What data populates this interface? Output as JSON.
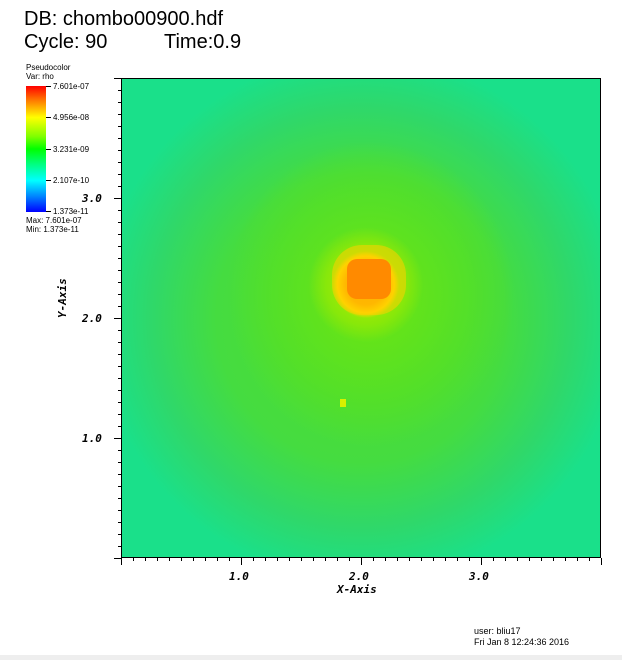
{
  "header": {
    "db": "DB: chombo00900.hdf",
    "cycle": "Cycle: 90",
    "time": "Time:0.9"
  },
  "legend": {
    "title": "Pseudocolor",
    "var": "Var: rho",
    "ticks": [
      "7.601e-07",
      "4.956e-08",
      "3.231e-09",
      "2.107e-10",
      "1.373e-11"
    ],
    "max": "Max:  7.601e-07",
    "min": "Min:  1.373e-11",
    "colors": [
      "#ff0000",
      "#ffff00",
      "#00ff00",
      "#00ffff",
      "#0000ff"
    ]
  },
  "axes": {
    "x_title": "X-Axis",
    "y_title": "Y-Axis",
    "x_ticks": [
      "1.0",
      "2.0",
      "3.0"
    ],
    "y_ticks": [
      "3.0",
      "2.0",
      "1.0"
    ]
  },
  "footer": {
    "user": "user: bliu17",
    "date": "Fri Jan  8 12:24:36 2016"
  }
}
